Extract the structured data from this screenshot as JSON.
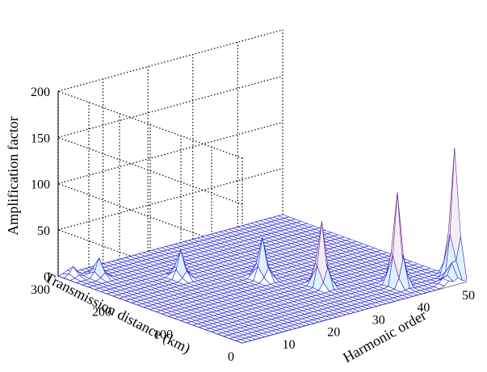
{
  "chart_data": {
    "type": "surface",
    "title": "",
    "xlabel": "Harmonic order",
    "ylabel": "Transmission distance (km)",
    "zlabel": "Amplification factor",
    "xlim": [
      0,
      50
    ],
    "ylim": [
      0,
      300
    ],
    "zlim": [
      0,
      200
    ],
    "x_ticks": [
      "10",
      "20",
      "30",
      "40",
      "50"
    ],
    "y_ticks": [
      "0",
      "100",
      "200",
      "300"
    ],
    "z_ticks": [
      "0",
      "50",
      "100",
      "150",
      "200"
    ],
    "grid": true,
    "peaks": [
      {
        "harmonic": 50,
        "distance": 20,
        "value": 140
      },
      {
        "harmonic": 40,
        "distance": 40,
        "value": 100
      },
      {
        "harmonic": 30,
        "distance": 90,
        "value": 70
      },
      {
        "harmonic": 25,
        "distance": 150,
        "value": 45
      },
      {
        "harmonic": 15,
        "distance": 210,
        "value": 30
      },
      {
        "harmonic": 5,
        "distance": 270,
        "value": 20
      },
      {
        "harmonic": 2,
        "distance": 290,
        "value": 10
      },
      {
        "harmonic": 48,
        "distance": 10,
        "value": 20
      },
      {
        "harmonic": 46,
        "distance": 5,
        "value": 8
      }
    ],
    "colors": {
      "surface": "#1f1fd6",
      "fill": "#ffffff",
      "peak_high": "#c0204a",
      "peak_mid": "#2aa5e6"
    }
  }
}
